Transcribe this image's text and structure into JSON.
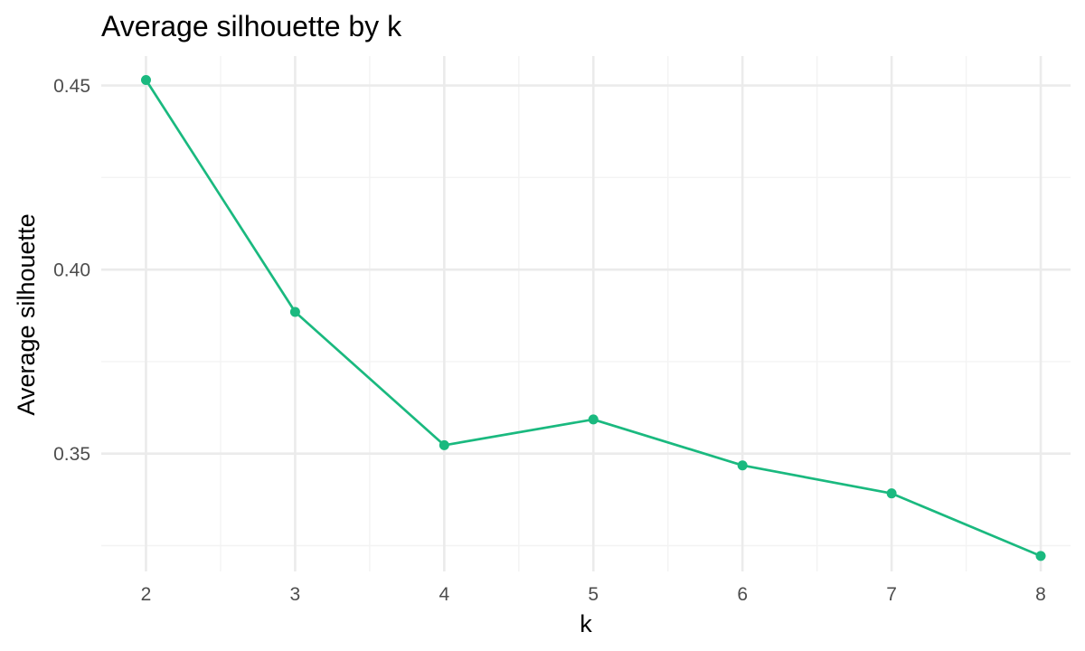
{
  "chart_data": {
    "type": "line",
    "title": "Average silhouette by k",
    "xlabel": "k",
    "ylabel": "Average silhouette",
    "x": [
      2,
      3,
      4,
      5,
      6,
      7,
      8
    ],
    "series": [
      {
        "values": [
          0.4515,
          0.3885,
          0.3523,
          0.3593,
          0.3468,
          0.3392,
          0.3222
        ]
      }
    ],
    "x_ticks": [
      "2",
      "3",
      "4",
      "5",
      "6",
      "7",
      "8"
    ],
    "y_ticks": [
      "0.35",
      "0.40",
      "0.45"
    ],
    "xlim": [
      1.7,
      8.2
    ],
    "ylim": [
      0.318,
      0.458
    ],
    "grid": true,
    "color": "#1ab97f"
  }
}
